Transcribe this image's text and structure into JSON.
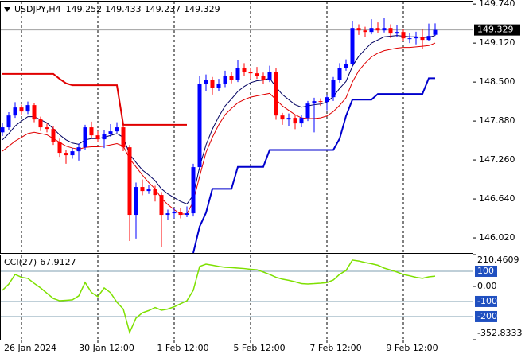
{
  "chart_data": [
    {
      "type": "candlestick",
      "title": "USDJPY,H4",
      "categories": [
        null,
        null,
        null,
        "26 Jan 2024",
        null,
        null,
        null,
        null,
        null,
        null,
        null,
        null,
        null,
        null,
        null,
        "30 Jan 12:00",
        null,
        null,
        null,
        null,
        null,
        null,
        null,
        null,
        null,
        null,
        null,
        "1 Feb 12:00",
        null,
        null,
        null,
        null,
        null,
        null,
        null,
        null,
        null,
        null,
        null,
        "5 Feb 12:00",
        null,
        null,
        null,
        null,
        null,
        null,
        null,
        null,
        null,
        null,
        null,
        "7 Feb 12:00",
        null,
        null,
        null,
        null,
        null,
        null,
        null,
        null,
        null,
        null,
        null,
        "9 Feb 12:00",
        null,
        null,
        null,
        null,
        null
      ],
      "open": [
        147.7,
        147.779,
        147.968,
        148.095,
        148.032,
        148.133,
        147.905,
        147.779,
        147.753,
        147.551,
        147.374,
        147.336,
        147.399,
        147.462,
        147.779,
        147.652,
        147.589,
        147.677,
        147.715,
        147.779,
        147.462,
        146.387,
        146.83,
        146.766,
        146.792,
        146.703,
        146.387,
        146.412,
        146.437,
        146.387,
        146.412,
        147.146,
        148.475,
        148.538,
        148.411,
        148.475,
        148.601,
        148.538,
        148.728,
        148.664,
        148.639,
        148.601,
        148.538,
        148.664,
        147.968,
        147.905,
        147.93,
        147.842,
        147.93,
        148.158,
        148.196,
        148.184,
        148.259,
        148.538,
        148.728,
        148.791,
        149.36,
        149.322,
        149.297,
        149.36,
        149.322,
        149.36,
        149.272,
        149.297,
        149.196,
        149.196,
        149.221,
        149.171,
        149.252
      ],
      "high": [
        147.85,
        148.02,
        148.18,
        148.14,
        148.19,
        148.17,
        147.95,
        147.84,
        147.8,
        147.6,
        147.42,
        147.45,
        147.52,
        147.82,
        147.87,
        147.72,
        147.73,
        147.83,
        147.86,
        147.82,
        147.5,
        146.9,
        146.95,
        146.86,
        146.85,
        146.75,
        146.47,
        146.5,
        146.49,
        146.52,
        147.2,
        148.6,
        148.62,
        148.58,
        148.55,
        148.68,
        148.66,
        148.85,
        148.8,
        148.72,
        148.74,
        148.65,
        148.76,
        148.72,
        148.01,
        148.0,
        147.98,
        147.98,
        148.2,
        148.25,
        148.24,
        148.3,
        148.58,
        148.8,
        148.86,
        149.47,
        149.42,
        149.38,
        149.5,
        149.45,
        149.52,
        149.42,
        149.4,
        149.35,
        149.28,
        149.3,
        149.35,
        149.43,
        149.433
      ],
      "low": [
        147.64,
        147.73,
        147.93,
        147.98,
        147.99,
        147.86,
        147.72,
        147.7,
        147.5,
        147.31,
        147.2,
        147.28,
        147.25,
        147.42,
        147.6,
        147.54,
        147.45,
        147.63,
        147.69,
        147.4,
        145.97,
        146.01,
        146.7,
        146.72,
        146.6,
        145.88,
        146.3,
        146.33,
        146.33,
        146.35,
        146.36,
        147.1,
        148.35,
        148.3,
        148.36,
        148.42,
        148.48,
        148.5,
        148.6,
        148.55,
        148.55,
        148.47,
        148.5,
        147.9,
        147.82,
        147.8,
        147.75,
        147.78,
        147.88,
        147.7,
        148.12,
        148.05,
        148.2,
        148.49,
        148.68,
        148.75,
        149.25,
        149.22,
        149.26,
        149.28,
        149.29,
        149.2,
        149.22,
        149.15,
        149.12,
        149.1,
        149.02,
        149.15,
        149.237
      ],
      "close": [
        147.779,
        147.968,
        148.095,
        148.032,
        148.133,
        147.905,
        147.779,
        147.753,
        147.551,
        147.374,
        147.336,
        147.399,
        147.462,
        147.779,
        147.652,
        147.589,
        147.677,
        147.715,
        147.779,
        147.462,
        146.387,
        146.83,
        146.766,
        146.792,
        146.703,
        146.387,
        146.412,
        146.437,
        146.387,
        146.412,
        147.146,
        148.475,
        148.538,
        148.411,
        148.475,
        148.601,
        148.538,
        148.728,
        148.664,
        148.639,
        148.601,
        148.538,
        148.664,
        147.968,
        147.905,
        147.93,
        147.842,
        147.93,
        148.158,
        148.196,
        148.184,
        148.259,
        148.538,
        148.728,
        148.791,
        149.36,
        149.322,
        149.297,
        149.36,
        149.322,
        149.36,
        149.272,
        149.297,
        149.196,
        149.196,
        149.221,
        149.171,
        149.234,
        149.329
      ],
      "up_color": "#0000ff",
      "down_color": "#ff0000",
      "lines": [
        {
          "color": "#000060",
          "values": [
            147.58,
            147.68,
            147.8,
            147.88,
            147.95,
            147.95,
            147.9,
            147.85,
            147.76,
            147.66,
            147.58,
            147.53,
            147.51,
            147.58,
            147.6,
            147.6,
            147.62,
            147.65,
            147.68,
            147.62,
            147.35,
            147.22,
            147.1,
            147.02,
            146.93,
            146.8,
            146.72,
            146.66,
            146.6,
            146.56,
            146.7,
            147.15,
            147.5,
            147.75,
            147.95,
            148.12,
            148.23,
            148.35,
            148.43,
            148.49,
            148.52,
            148.53,
            148.56,
            148.42,
            148.3,
            148.22,
            148.14,
            148.1,
            148.12,
            148.14,
            148.15,
            148.18,
            148.27,
            148.4,
            148.51,
            148.75,
            148.91,
            149.02,
            149.12,
            149.17,
            149.22,
            149.23,
            149.24,
            149.23,
            149.22,
            149.22,
            149.21,
            149.21,
            149.24
          ]
        },
        {
          "color": "#e00000",
          "values": [
            147.4,
            147.48,
            147.56,
            147.62,
            147.68,
            147.7,
            147.68,
            147.66,
            147.6,
            147.54,
            147.48,
            147.45,
            147.43,
            147.46,
            147.47,
            147.47,
            147.48,
            147.5,
            147.52,
            147.48,
            147.28,
            147.15,
            147.02,
            146.9,
            146.8,
            146.65,
            146.55,
            146.47,
            146.4,
            146.4,
            146.6,
            147.0,
            147.38,
            147.62,
            147.82,
            147.98,
            148.08,
            148.17,
            148.22,
            148.26,
            148.28,
            148.3,
            148.32,
            148.22,
            148.12,
            148.05,
            147.98,
            147.93,
            147.92,
            147.92,
            147.93,
            147.96,
            148.03,
            148.13,
            148.25,
            148.5,
            148.68,
            148.8,
            148.9,
            148.96,
            149.0,
            149.02,
            149.04,
            149.05,
            149.05,
            149.06,
            149.07,
            149.08,
            149.12
          ]
        },
        {
          "color": "#e00000",
          "width": 2,
          "values": [
            148.63,
            148.63,
            148.63,
            148.63,
            148.63,
            148.63,
            148.63,
            148.63,
            148.63,
            148.55,
            148.48,
            148.45,
            148.45,
            148.45,
            148.45,
            148.45,
            148.45,
            148.45,
            148.45,
            147.82,
            147.82,
            147.82,
            147.82,
            147.82,
            147.82,
            147.82,
            147.82,
            147.82,
            147.82,
            147.82,
            null,
            null,
            null,
            null,
            null,
            null,
            null,
            null,
            null,
            null,
            null,
            null,
            null,
            null,
            null,
            null,
            null,
            null,
            null,
            null,
            null,
            null,
            null,
            null,
            null,
            null,
            null,
            null,
            null,
            null,
            null,
            null,
            null,
            null,
            null,
            null,
            null,
            null,
            null
          ]
        },
        {
          "color": "#0000cc",
          "width": 2,
          "values": [
            null,
            null,
            null,
            null,
            null,
            null,
            null,
            null,
            null,
            null,
            null,
            null,
            null,
            null,
            null,
            null,
            null,
            null,
            null,
            null,
            null,
            null,
            null,
            null,
            null,
            null,
            null,
            null,
            null,
            null,
            145.78,
            146.2,
            146.42,
            146.8,
            146.8,
            146.8,
            146.8,
            147.15,
            147.15,
            147.15,
            147.15,
            147.15,
            147.42,
            147.42,
            147.42,
            147.42,
            147.42,
            147.42,
            147.42,
            147.42,
            147.42,
            147.42,
            147.42,
            147.6,
            147.96,
            148.22,
            148.22,
            148.22,
            148.22,
            148.31,
            148.31,
            148.31,
            148.31,
            148.31,
            148.31,
            148.31,
            148.31,
            148.56,
            148.56
          ]
        }
      ],
      "ylim": [
        145.78,
        149.78
      ],
      "yticks": [
        {
          "value": 149.74,
          "label": "149.740"
        },
        {
          "value": 149.12,
          "label": "149.120"
        },
        {
          "value": 148.5,
          "label": "148.500"
        },
        {
          "value": 147.88,
          "label": "147.880"
        },
        {
          "value": 147.26,
          "label": "147.260"
        },
        {
          "value": 146.64,
          "label": "146.640"
        },
        {
          "value": 146.02,
          "label": "146.020"
        }
      ],
      "grid": true
    },
    {
      "type": "line",
      "title": "CCI(27)",
      "color": "#7ee000",
      "values": [
        -26,
        15,
        79,
        60,
        53,
        20,
        -10,
        -45,
        -80,
        -95,
        -92,
        -89,
        -63,
        26,
        -40,
        -68,
        -10,
        -42,
        -105,
        -150,
        -305,
        -210,
        -175,
        -160,
        -140,
        -158,
        -150,
        -135,
        -115,
        -95,
        -26,
        132,
        147,
        140,
        132,
        126,
        124,
        121,
        118,
        113,
        110,
        95,
        79,
        60,
        48,
        40,
        30,
        18,
        16,
        18,
        21,
        25,
        42,
        80,
        105,
        174,
        168,
        158,
        150,
        140,
        121,
        108,
        95,
        79,
        70,
        60,
        53,
        63,
        67.9127
      ],
      "ylim": [
        -352.8333,
        210.4609
      ],
      "yticks": [
        210.4609,
        {
          "value": 0,
          "label": "0.00"
        },
        -352.8333
      ],
      "levels": [
        100,
        -100,
        -200
      ]
    }
  ]
}
